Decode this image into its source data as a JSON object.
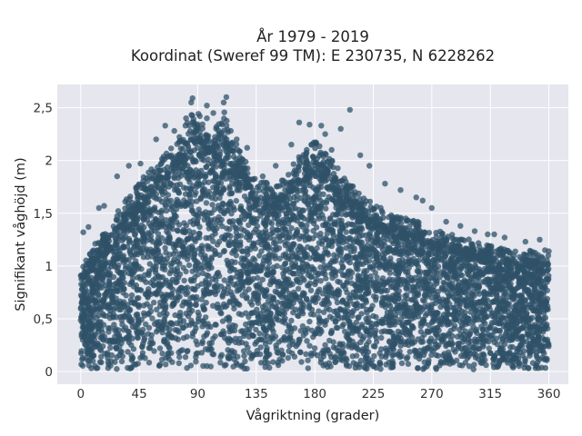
{
  "chart_data": {
    "type": "scatter",
    "title_line1": "År 1979 - 2019",
    "title_line2": "Koordinat (Sweref 99 TM): E 230735, N 6228262",
    "xlabel": "Vågriktning (grader)",
    "ylabel": "Signifikant våghöjd (m)",
    "xlim": [
      -18,
      375
    ],
    "ylim": [
      -0.12,
      2.72
    ],
    "x_ticks": [
      0,
      45,
      90,
      135,
      180,
      225,
      270,
      315,
      360
    ],
    "x_tick_labels": [
      "0",
      "45",
      "90",
      "135",
      "180",
      "225",
      "270",
      "315",
      "360"
    ],
    "y_ticks": [
      0,
      0.5,
      1,
      1.5,
      2,
      2.5
    ],
    "y_tick_labels": [
      "0",
      "0,5",
      "1",
      "1,5",
      "2",
      "2,5"
    ],
    "grid": true,
    "marker_color": "#2f5168",
    "plot_background": "#e5e6ee",
    "envelope_description": "Dense cloud of points from 0 to 360 degrees; upper envelope of wave height by direction",
    "envelope": {
      "x": [
        0,
        10,
        20,
        30,
        45,
        60,
        75,
        85,
        90,
        95,
        105,
        110,
        120,
        135,
        150,
        165,
        175,
        180,
        190,
        200,
        210,
        225,
        240,
        255,
        270,
        285,
        300,
        315,
        330,
        345,
        360
      ],
      "y": [
        0.95,
        1.2,
        1.35,
        1.55,
        1.8,
        2.0,
        2.2,
        2.45,
        2.5,
        2.3,
        2.35,
        2.5,
        2.15,
        1.85,
        1.75,
        2.0,
        2.15,
        2.2,
        2.05,
        1.9,
        1.75,
        1.6,
        1.5,
        1.45,
        1.35,
        1.3,
        1.25,
        1.2,
        1.15,
        1.15,
        1.1
      ]
    },
    "outliers": [
      {
        "x": 86,
        "y": 2.59
      },
      {
        "x": 85,
        "y": 2.55
      },
      {
        "x": 112,
        "y": 2.6
      },
      {
        "x": 110,
        "y": 2.55
      },
      {
        "x": 102,
        "y": 2.45
      },
      {
        "x": 97,
        "y": 2.4
      },
      {
        "x": 81,
        "y": 2.4
      },
      {
        "x": 207,
        "y": 2.48
      },
      {
        "x": 200,
        "y": 2.3
      },
      {
        "x": 168,
        "y": 2.36
      },
      {
        "x": 176,
        "y": 2.34
      },
      {
        "x": 185,
        "y": 2.33
      },
      {
        "x": 65,
        "y": 2.33
      },
      {
        "x": 72,
        "y": 2.28
      },
      {
        "x": 58,
        "y": 2.2
      },
      {
        "x": 188,
        "y": 2.25
      },
      {
        "x": 162,
        "y": 2.15
      },
      {
        "x": 193,
        "y": 2.1
      },
      {
        "x": 120,
        "y": 2.2
      },
      {
        "x": 128,
        "y": 2.12
      },
      {
        "x": 37,
        "y": 1.95
      },
      {
        "x": 46,
        "y": 1.97
      },
      {
        "x": 28,
        "y": 1.85
      },
      {
        "x": 14,
        "y": 1.55
      },
      {
        "x": 18,
        "y": 1.57
      },
      {
        "x": 6,
        "y": 1.37
      },
      {
        "x": 2,
        "y": 1.32
      },
      {
        "x": 215,
        "y": 2.05
      },
      {
        "x": 222,
        "y": 1.95
      },
      {
        "x": 234,
        "y": 1.78
      },
      {
        "x": 246,
        "y": 1.72
      },
      {
        "x": 258,
        "y": 1.65
      },
      {
        "x": 263,
        "y": 1.62
      },
      {
        "x": 270,
        "y": 1.55
      },
      {
        "x": 281,
        "y": 1.42
      },
      {
        "x": 292,
        "y": 1.38
      },
      {
        "x": 303,
        "y": 1.33
      },
      {
        "x": 313,
        "y": 1.3
      },
      {
        "x": 318,
        "y": 1.3
      },
      {
        "x": 326,
        "y": 1.27
      },
      {
        "x": 342,
        "y": 1.23
      },
      {
        "x": 353,
        "y": 1.25
      },
      {
        "x": 357,
        "y": 1.15
      },
      {
        "x": 360,
        "y": 1.14
      },
      {
        "x": 97,
        "y": 2.52
      },
      {
        "x": 150,
        "y": 1.95
      },
      {
        "x": 140,
        "y": 1.85
      }
    ]
  }
}
